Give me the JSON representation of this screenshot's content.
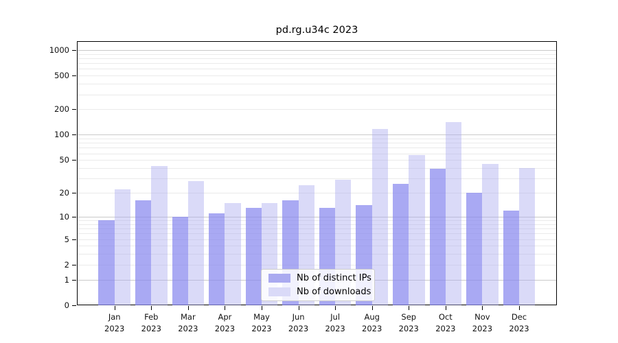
{
  "title": "pd.rg.u34c 2023",
  "chart_data": {
    "type": "bar",
    "title": "pd.rg.u34c 2023",
    "yscale": "log1p",
    "grid": true,
    "legend_position": "lower center",
    "year_label": "2023",
    "categories": [
      "Jan",
      "Feb",
      "Mar",
      "Apr",
      "May",
      "Jun",
      "Jul",
      "Aug",
      "Sep",
      "Oct",
      "Nov",
      "Dec"
    ],
    "x_tick_labels": [
      "Jan 2023",
      "Feb 2023",
      "Mar 2023",
      "Apr 2023",
      "May 2023",
      "Jun 2023",
      "Jul 2023",
      "Aug 2023",
      "Sep 2023",
      "Oct 2023",
      "Nov 2023",
      "Dec 2023"
    ],
    "yticks": [
      0,
      1,
      2,
      5,
      10,
      20,
      50,
      100,
      200,
      500,
      1000
    ],
    "ylim": [
      0,
      1270
    ],
    "series": [
      {
        "name": "Nb of distinct IPs",
        "color": "#aaaaf0",
        "fill": "rgba(136,136,238,0.72)",
        "values": [
          9,
          16,
          10,
          11,
          13,
          16,
          13,
          14,
          26,
          39,
          20,
          12
        ]
      },
      {
        "name": "Nb of downloads",
        "color": "#dadaf8",
        "fill": "rgba(170,170,238,0.44)",
        "values": [
          22,
          42,
          28,
          15,
          15,
          25,
          29,
          118,
          57,
          140,
          45,
          40
        ]
      }
    ],
    "colors": {
      "major_gridline": "#c9c9c9",
      "minor_gridline": "#eaeaea",
      "axis": "#000000",
      "background": "#ffffff"
    }
  }
}
